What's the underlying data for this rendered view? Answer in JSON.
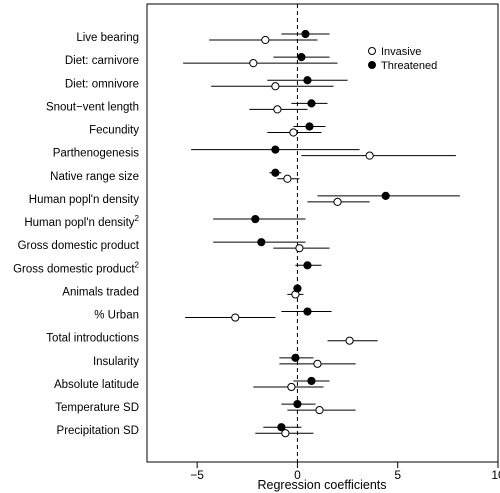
{
  "chart_data": {
    "type": "scatter",
    "subtype": "dot-and-whisker (coefficient plot)",
    "title": "",
    "xlabel": "Regression coefficients",
    "ylabel": "",
    "xlim": [
      -7.5,
      10
    ],
    "x_ticks": [
      -5,
      0,
      5,
      10
    ],
    "x_tick_labels": [
      "−5",
      "0",
      "5",
      "10"
    ],
    "reference_line_x": 0,
    "grid": false,
    "legend_position": "top-right",
    "categories": [
      {
        "label": "Live bearing"
      },
      {
        "label": "Diet: carnivore"
      },
      {
        "label": "Diet: omnivore"
      },
      {
        "label": "Snout−vent length"
      },
      {
        "label": "Fecundity"
      },
      {
        "label": "Parthenogenesis"
      },
      {
        "label": "Native range size"
      },
      {
        "label": "Human popl'n density"
      },
      {
        "label": "Human popl'n density",
        "superscript": "2"
      },
      {
        "label": "Gross domestic product"
      },
      {
        "label": "Gross domestic product",
        "superscript": "2"
      },
      {
        "label": "Animals traded"
      },
      {
        "label": "% Urban"
      },
      {
        "label": "Total introductions"
      },
      {
        "label": "Insularity"
      },
      {
        "label": "Absolute latitude"
      },
      {
        "label": "Temperature SD"
      },
      {
        "label": "Precipitation SD"
      }
    ],
    "series": [
      {
        "name": "Invasive",
        "marker": "open-circle",
        "color": "#000000",
        "points": [
          {
            "category": 0,
            "estimate": -1.6,
            "lower": -4.4,
            "upper": 1.0
          },
          {
            "category": 1,
            "estimate": -2.2,
            "lower": -5.7,
            "upper": 2.0
          },
          {
            "category": 2,
            "estimate": -1.1,
            "lower": -4.3,
            "upper": 1.8
          },
          {
            "category": 3,
            "estimate": -1.0,
            "lower": -2.4,
            "upper": 0.5
          },
          {
            "category": 4,
            "estimate": -0.2,
            "lower": -1.5,
            "upper": 1.2
          },
          {
            "category": 5,
            "estimate": 3.6,
            "lower": 0.2,
            "upper": 7.9
          },
          {
            "category": 6,
            "estimate": -0.5,
            "lower": -1.0,
            "upper": 0.1
          },
          {
            "category": 7,
            "estimate": 2.0,
            "lower": 0.5,
            "upper": 3.6
          },
          {
            "category": 9,
            "estimate": 0.1,
            "lower": -1.2,
            "upper": 1.6
          },
          {
            "category": 11,
            "estimate": -0.1,
            "lower": -0.5,
            "upper": 0.3
          },
          {
            "category": 12,
            "estimate": -3.1,
            "lower": -5.6,
            "upper": -1.1
          },
          {
            "category": 13,
            "estimate": 2.6,
            "lower": 1.5,
            "upper": 4.0
          },
          {
            "category": 14,
            "estimate": 1.0,
            "lower": -0.9,
            "upper": 2.9
          },
          {
            "category": 15,
            "estimate": -0.3,
            "lower": -2.2,
            "upper": 1.3
          },
          {
            "category": 16,
            "estimate": 1.1,
            "lower": -0.5,
            "upper": 2.9
          },
          {
            "category": 17,
            "estimate": -0.6,
            "lower": -2.1,
            "upper": 0.8
          }
        ]
      },
      {
        "name": "Threatened",
        "marker": "filled-circle",
        "color": "#000000",
        "points": [
          {
            "category": 0,
            "estimate": 0.4,
            "lower": -0.8,
            "upper": 1.6
          },
          {
            "category": 1,
            "estimate": 0.2,
            "lower": -1.2,
            "upper": 1.6
          },
          {
            "category": 2,
            "estimate": 0.5,
            "lower": -1.5,
            "upper": 2.5
          },
          {
            "category": 3,
            "estimate": 0.7,
            "lower": -0.3,
            "upper": 1.5
          },
          {
            "category": 4,
            "estimate": 0.6,
            "lower": -0.2,
            "upper": 1.4
          },
          {
            "category": 5,
            "estimate": -1.1,
            "lower": -5.3,
            "upper": 3.1
          },
          {
            "category": 6,
            "estimate": -1.1,
            "lower": -1.4,
            "upper": -0.8
          },
          {
            "category": 7,
            "estimate": 4.4,
            "lower": 1.0,
            "upper": 8.1
          },
          {
            "category": 8,
            "estimate": -2.1,
            "lower": -4.2,
            "upper": 0.4
          },
          {
            "category": 9,
            "estimate": -1.8,
            "lower": -4.2,
            "upper": 0.4
          },
          {
            "category": 10,
            "estimate": 0.5,
            "lower": -0.1,
            "upper": 1.2
          },
          {
            "category": 11,
            "estimate": 0.0,
            "lower": -0.2,
            "upper": 0.2
          },
          {
            "category": 12,
            "estimate": 0.5,
            "lower": -0.8,
            "upper": 1.7
          },
          {
            "category": 14,
            "estimate": -0.1,
            "lower": -0.9,
            "upper": 0.8
          },
          {
            "category": 15,
            "estimate": 0.7,
            "lower": -0.2,
            "upper": 1.6
          },
          {
            "category": 16,
            "estimate": 0.0,
            "lower": -0.8,
            "upper": 0.9
          },
          {
            "category": 17,
            "estimate": -0.8,
            "lower": -1.7,
            "upper": 0.2
          }
        ]
      }
    ]
  }
}
